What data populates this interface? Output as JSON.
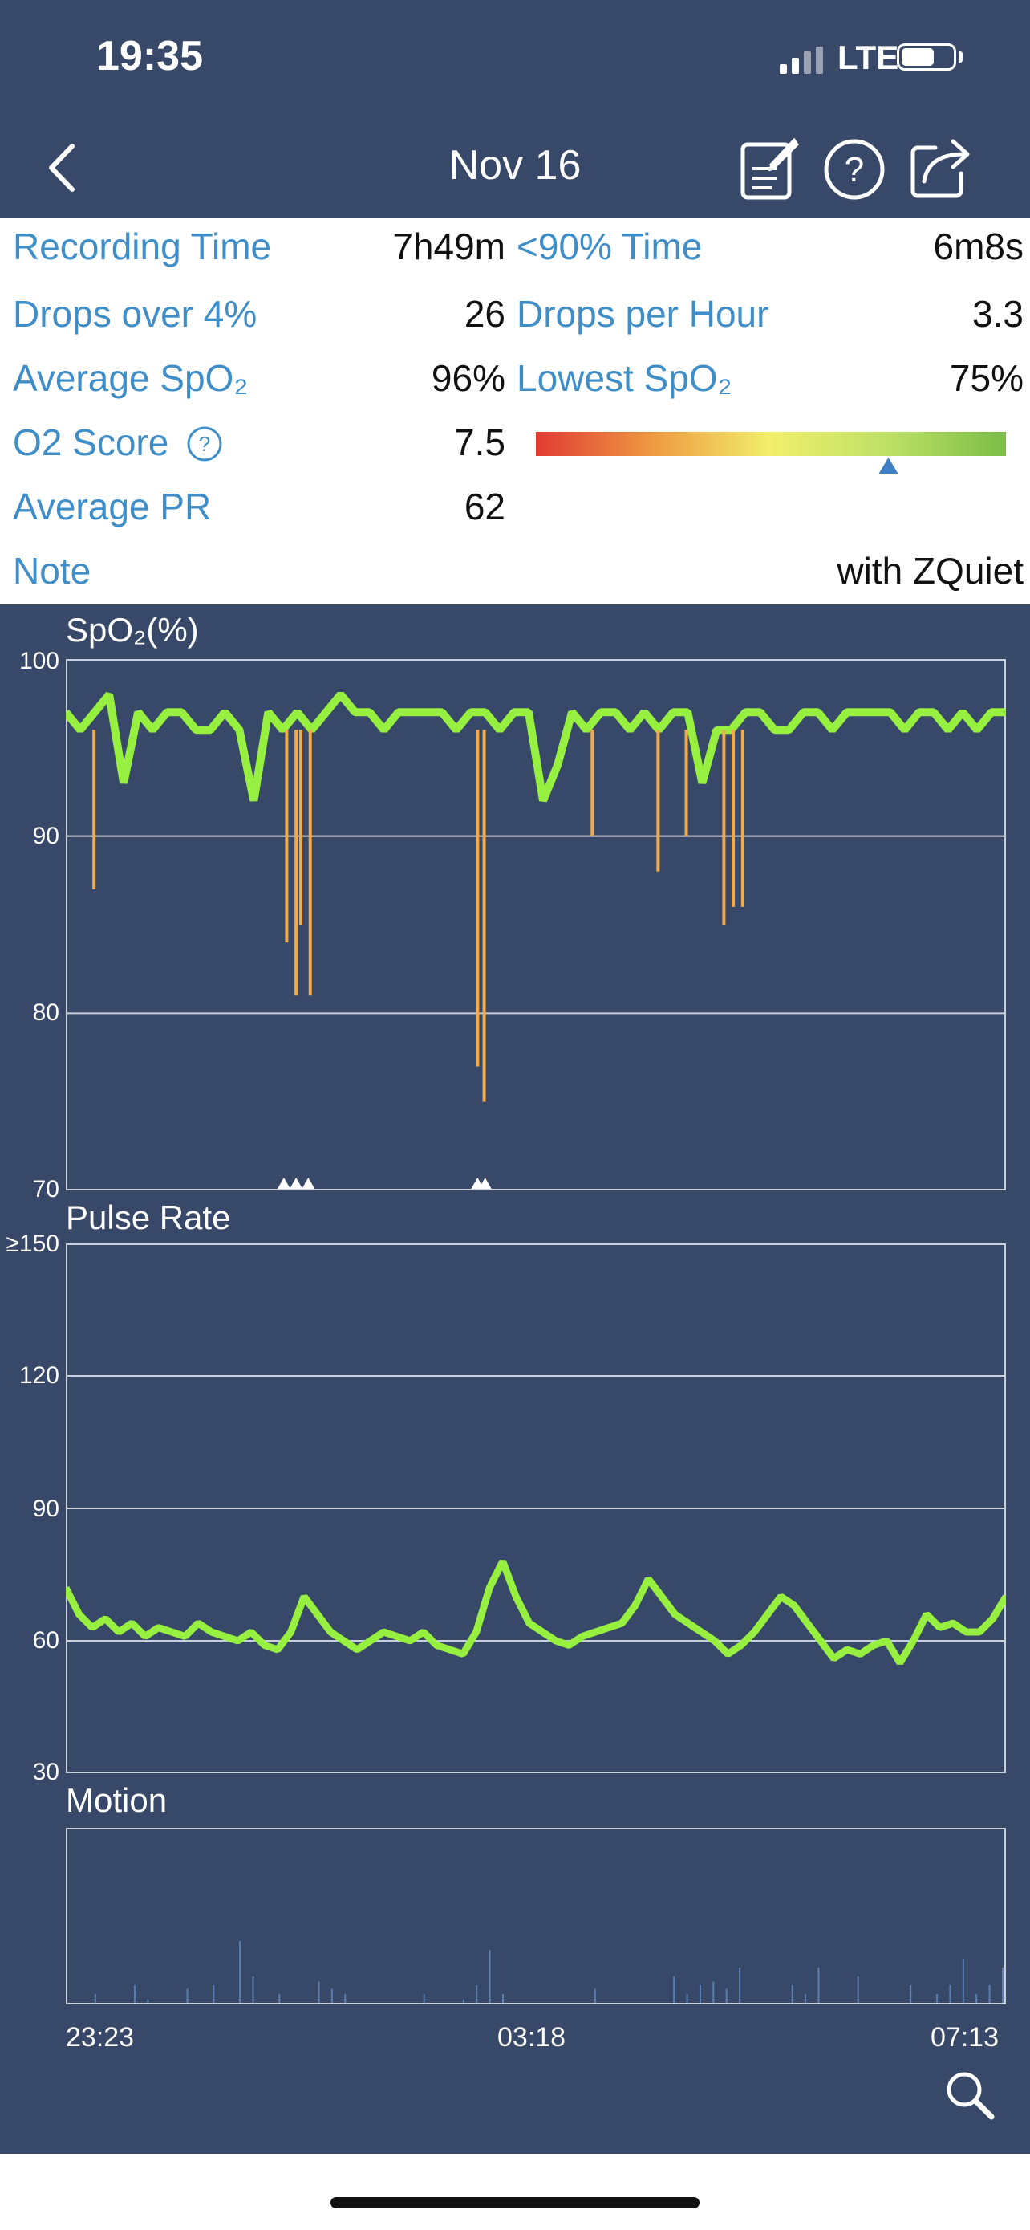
{
  "status_bar": {
    "time": "19:35",
    "network": "LTE"
  },
  "nav": {
    "title": "Nov 16",
    "back_icon": "chevron-left-icon",
    "note_icon": "edit-note-icon",
    "help_icon": "help-circle-icon",
    "share_icon": "share-icon"
  },
  "summary": {
    "recording_time_label": "Recording Time",
    "recording_time_value": "7h49m",
    "below90_label": "<90% Time",
    "below90_value": "6m8s",
    "drops_label": "Drops over 4%",
    "drops_value": "26",
    "drops_hour_label": "Drops per Hour",
    "drops_hour_value": "3.3",
    "avg_spo2_label": "Average SpO₂",
    "avg_spo2_value": "96%",
    "lowest_spo2_label": "Lowest SpO₂",
    "lowest_spo2_value": "75%",
    "o2_score_label": "O2 Score",
    "o2_score_value": "7.5",
    "o2_score_fraction": 0.75,
    "avg_pr_label": "Average PR",
    "avg_pr_value": "62",
    "note_label": "Note",
    "note_value": "with ZQuiet"
  },
  "charts": {
    "spo2": {
      "title": "SpO₂(%)",
      "yticks": [
        "100",
        "90",
        "80",
        "70"
      ],
      "ylim": [
        70,
        100
      ]
    },
    "pulse": {
      "title": "Pulse Rate",
      "yticks": [
        "≥150",
        "120",
        "90",
        "60",
        "30"
      ],
      "ylim": [
        30,
        150
      ]
    },
    "motion": {
      "title": "Motion"
    },
    "xticks": [
      "23:23",
      "03:18",
      "07:13"
    ],
    "zoom_icon": "magnifier-icon"
  },
  "chart_data": [
    {
      "type": "line",
      "title": "SpO₂(%)",
      "x_range": [
        "23:23",
        "07:13"
      ],
      "ylim": [
        70,
        100
      ],
      "series": [
        {
          "values": [
            97,
            96,
            97,
            98,
            93,
            97,
            96,
            97,
            97,
            96,
            96,
            97,
            96,
            92,
            97,
            96,
            97,
            96,
            97,
            98,
            97,
            97,
            96,
            97,
            97,
            97,
            97,
            96,
            97,
            97,
            96,
            97,
            97,
            92,
            94,
            97,
            96,
            97,
            97,
            96,
            97,
            96,
            97,
            97,
            93,
            96,
            96,
            97,
            97,
            96,
            96,
            97,
            97,
            96,
            97,
            97,
            97,
            97,
            96,
            97,
            97,
            96,
            97,
            96,
            97,
            97
          ]
        }
      ],
      "dips": [
        {
          "time_fraction": 0.03,
          "value": 87
        },
        {
          "time_fraction": 0.235,
          "value": 84
        },
        {
          "time_fraction": 0.245,
          "value": 81
        },
        {
          "time_fraction": 0.25,
          "value": 85
        },
        {
          "time_fraction": 0.26,
          "value": 81
        },
        {
          "time_fraction": 0.438,
          "value": 77
        },
        {
          "time_fraction": 0.445,
          "value": 75
        },
        {
          "time_fraction": 0.56,
          "value": 90
        },
        {
          "time_fraction": 0.63,
          "value": 88
        },
        {
          "time_fraction": 0.66,
          "value": 90
        },
        {
          "time_fraction": 0.7,
          "value": 85
        },
        {
          "time_fraction": 0.71,
          "value": 86
        },
        {
          "time_fraction": 0.72,
          "value": 86
        }
      ],
      "event_marker_fractions": [
        0.232,
        0.245,
        0.258,
        0.438,
        0.446
      ]
    },
    {
      "type": "line",
      "title": "Pulse Rate",
      "x_range": [
        "23:23",
        "07:13"
      ],
      "ylim": [
        30,
        150
      ],
      "series": [
        {
          "values": [
            72,
            66,
            63,
            65,
            62,
            64,
            61,
            63,
            62,
            61,
            64,
            62,
            61,
            60,
            62,
            59,
            58,
            62,
            70,
            66,
            62,
            60,
            58,
            60,
            62,
            61,
            60,
            62,
            59,
            58,
            57,
            62,
            72,
            78,
            70,
            64,
            62,
            60,
            59,
            61,
            62,
            63,
            64,
            68,
            74,
            70,
            66,
            64,
            62,
            60,
            57,
            59,
            62,
            66,
            70,
            68,
            64,
            60,
            56,
            58,
            57,
            59,
            60,
            55,
            60,
            66,
            63,
            64,
            62,
            62,
            65,
            70
          ]
        }
      ]
    },
    {
      "type": "bar",
      "title": "Motion",
      "x_range": [
        "23:23",
        "07:13"
      ],
      "values": [
        0,
        0,
        0.05,
        0,
        0,
        0.1,
        0.02,
        0,
        0,
        0.08,
        0,
        0.1,
        0,
        0.35,
        0.15,
        0,
        0.05,
        0,
        0,
        0.12,
        0.08,
        0.05,
        0,
        0,
        0,
        0,
        0,
        0.05,
        0,
        0,
        0.02,
        0.1,
        0.3,
        0.05,
        0,
        0,
        0,
        0,
        0,
        0,
        0.08,
        0,
        0,
        0,
        0,
        0,
        0.15,
        0.05,
        0.1,
        0.12,
        0.08,
        0.2,
        0,
        0,
        0,
        0.1,
        0.05,
        0.2,
        0,
        0,
        0.15,
        0,
        0,
        0,
        0.1,
        0,
        0.05,
        0.1,
        0.25,
        0.05,
        0.1,
        0.2
      ]
    }
  ]
}
